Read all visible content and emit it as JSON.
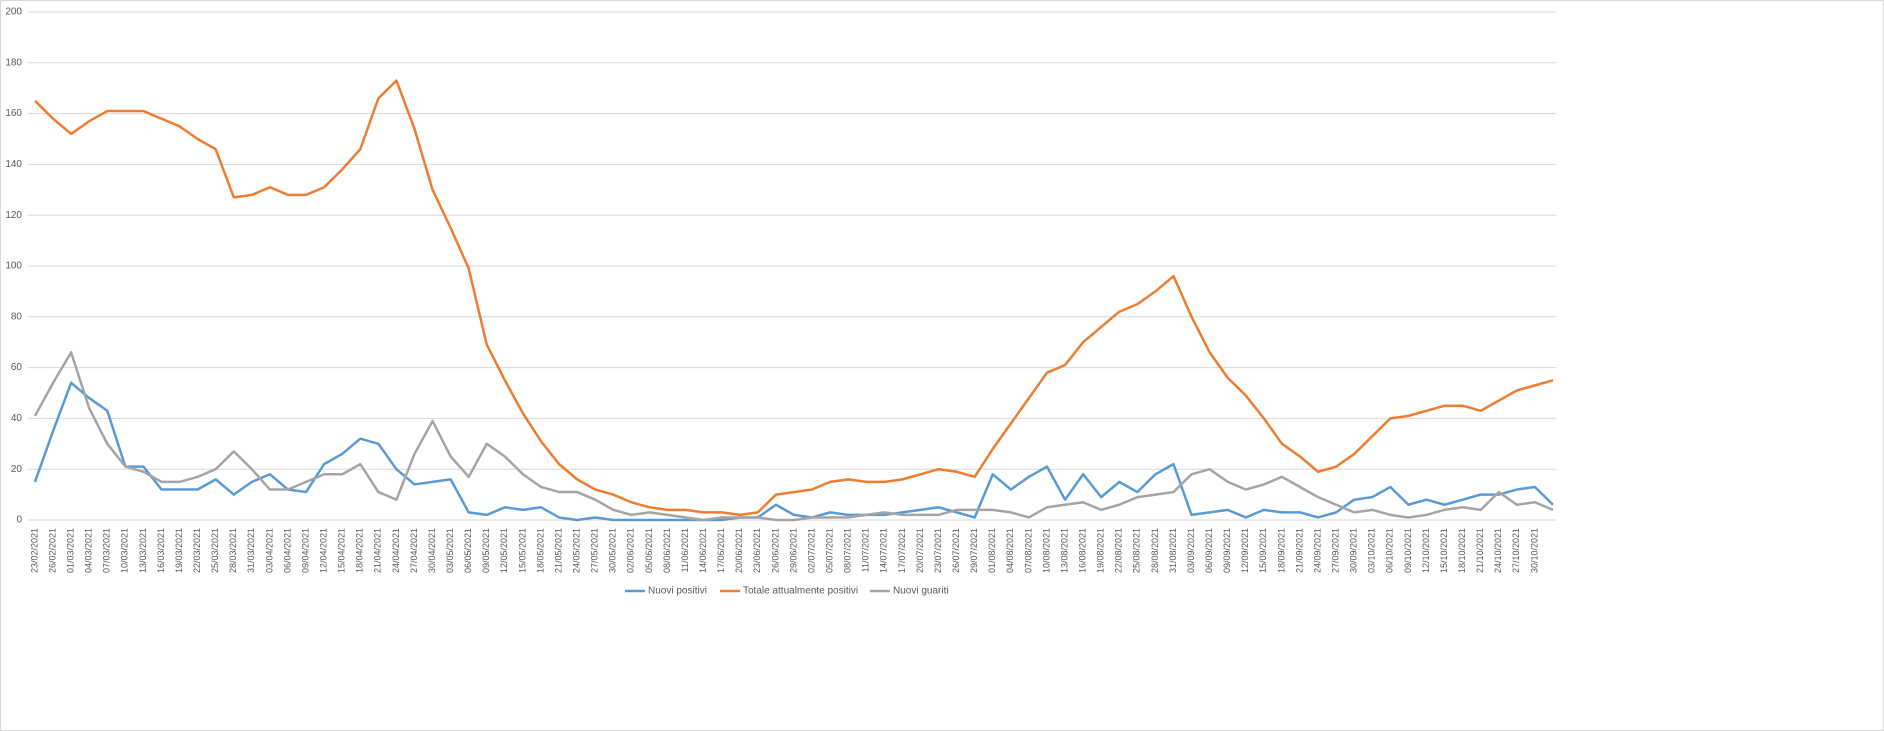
{
  "chart_data": {
    "type": "line",
    "categories": [
      "23/02/2021",
      "26/02/2021",
      "01/03/2021",
      "04/03/2021",
      "07/03/2021",
      "10/03/2021",
      "13/03/2021",
      "16/03/2021",
      "19/03/2021",
      "22/03/2021",
      "25/03/2021",
      "28/03/2021",
      "31/03/2021",
      "03/04/2021",
      "06/04/2021",
      "09/04/2021",
      "12/04/2021",
      "15/04/2021",
      "18/04/2021",
      "21/04/2021",
      "24/04/2021",
      "27/04/2021",
      "30/04/2021",
      "03/05/2021",
      "06/05/2021",
      "09/05/2021",
      "12/05/2021",
      "15/05/2021",
      "18/05/2021",
      "21/05/2021",
      "24/05/2021",
      "27/05/2021",
      "30/05/2021",
      "02/06/2021",
      "05/06/2021",
      "08/06/2021",
      "11/06/2021",
      "14/06/2021",
      "17/06/2021",
      "20/06/2021",
      "23/06/2021",
      "26/06/2021",
      "29/06/2021",
      "02/07/2021",
      "05/07/2021",
      "08/07/2021",
      "11/07/2021",
      "14/07/2021",
      "17/07/2021",
      "20/07/2021",
      "23/07/2021",
      "26/07/2021",
      "29/07/2021",
      "01/08/2021",
      "04/08/2021",
      "07/08/2021",
      "10/08/2021",
      "13/08/2021",
      "16/08/2021",
      "19/08/2021",
      "22/08/2021",
      "25/08/2021",
      "28/08/2021",
      "31/08/2021",
      "03/09/2021",
      "06/09/2021",
      "09/09/2021",
      "12/09/2021",
      "15/09/2021",
      "18/09/2021",
      "21/09/2021",
      "24/09/2021",
      "27/09/2021",
      "30/09/2021",
      "03/10/2021",
      "06/10/2021",
      "09/10/2021",
      "12/10/2021",
      "15/10/2021",
      "18/10/2021",
      "21/10/2021",
      "24/10/2021",
      "27/10/2021",
      "30/10/2021",
      null
    ],
    "series": [
      {
        "name": "Nuovi positivi",
        "color": "#5b9bd5",
        "values": [
          15,
          35,
          54,
          48,
          43,
          21,
          21,
          12,
          12,
          12,
          16,
          10,
          15,
          18,
          12,
          11,
          22,
          26,
          32,
          30,
          20,
          14,
          15,
          16,
          3,
          2,
          5,
          4,
          5,
          1,
          0,
          1,
          0,
          0,
          0,
          0,
          0,
          0,
          0,
          1,
          1,
          6,
          2,
          1,
          3,
          2,
          2,
          2,
          3,
          4,
          5,
          3,
          1,
          18,
          12,
          17,
          21,
          8,
          18,
          9,
          15,
          11,
          18,
          22,
          2,
          3,
          4,
          1,
          4,
          3,
          3,
          1,
          3,
          8,
          9,
          13,
          6,
          8,
          6,
          8,
          10,
          10,
          12,
          13,
          6
        ]
      },
      {
        "name": "Totale attualmente positivi",
        "color": "#ed7d31",
        "values": [
          165,
          158,
          152,
          157,
          161,
          161,
          161,
          158,
          155,
          150,
          146,
          127,
          128,
          131,
          128,
          128,
          131,
          138,
          146,
          166,
          173,
          154,
          130,
          115,
          99,
          69,
          55,
          42,
          31,
          22,
          16,
          12,
          10,
          7,
          5,
          4,
          4,
          3,
          3,
          2,
          3,
          10,
          11,
          12,
          15,
          16,
          15,
          15,
          16,
          18,
          20,
          19,
          17,
          28,
          38,
          48,
          58,
          61,
          70,
          76,
          82,
          85,
          90,
          96,
          80,
          66,
          56,
          49,
          40,
          30,
          25,
          19,
          21,
          26,
          33,
          40,
          41,
          43,
          45,
          45,
          43,
          47,
          51,
          53,
          55
        ]
      },
      {
        "name": "Nuovi guariti",
        "color": "#a5a5a5",
        "values": [
          41,
          54,
          66,
          44,
          30,
          21,
          19,
          15,
          15,
          17,
          20,
          27,
          20,
          12,
          12,
          15,
          18,
          18,
          22,
          11,
          8,
          26,
          39,
          25,
          17,
          30,
          25,
          18,
          13,
          11,
          11,
          8,
          4,
          2,
          3,
          2,
          1,
          0,
          1,
          1,
          1,
          0,
          0,
          1,
          1,
          1,
          2,
          3,
          2,
          2,
          2,
          4,
          4,
          4,
          3,
          1,
          5,
          6,
          7,
          4,
          6,
          9,
          10,
          11,
          18,
          20,
          15,
          12,
          14,
          17,
          13,
          9,
          6,
          3,
          4,
          2,
          1,
          2,
          4,
          5,
          4,
          11,
          6,
          7,
          4
        ]
      }
    ],
    "ylim": [
      0,
      200
    ],
    "yticks": [
      0,
      20,
      40,
      60,
      80,
      100,
      120,
      140,
      160,
      180,
      200
    ],
    "grid": true,
    "legend": "bottom"
  }
}
